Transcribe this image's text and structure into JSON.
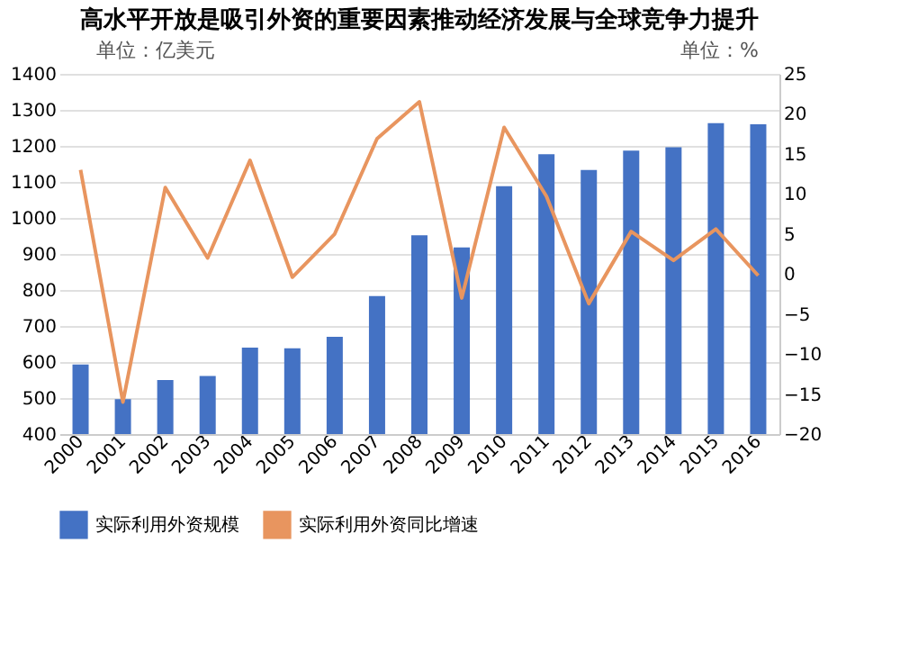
{
  "chart_data": {
    "type": "bar",
    "title": "高水平开放是吸引外资的重要因素推动经济发展与全球竞争力提升",
    "ylabel": "单位：亿美元",
    "y2label": "单位：%",
    "categories": [
      "2000",
      "2001",
      "2002",
      "2003",
      "2004",
      "2005",
      "2006",
      "2007",
      "2008",
      "2009",
      "2010",
      "2011",
      "2012",
      "2013",
      "2014",
      "2015",
      "2016"
    ],
    "series": [
      {
        "name": "实际利用外资规模",
        "color": "#4472c4",
        "values": [
          593,
          497,
          550,
          561,
          640,
          638,
          670,
          783,
          952,
          918,
          1088,
          1177,
          1133,
          1187,
          1196,
          1263,
          1260
        ]
      },
      {
        "name": "实际利用外资同比增速",
        "type": "line",
        "axis": "y2",
        "color": "#e8955f",
        "values": [
          13,
          -16,
          10.8,
          2,
          14.2,
          -0.4,
          5,
          16.9,
          21.5,
          -3,
          18.3,
          9.7,
          -3.7,
          5.3,
          1.7,
          5.6,
          -0.2
        ]
      }
    ],
    "ylim": [
      400,
      1400
    ],
    "yticks": [
      400,
      500,
      600,
      700,
      800,
      900,
      1000,
      1100,
      1200,
      1300,
      1400
    ],
    "y2lim": [
      -20,
      25
    ],
    "y2ticks": [
      -20,
      -15,
      -10,
      -5,
      0,
      5,
      10,
      15,
      20,
      25
    ],
    "grid": "y",
    "legend": "bottom"
  }
}
